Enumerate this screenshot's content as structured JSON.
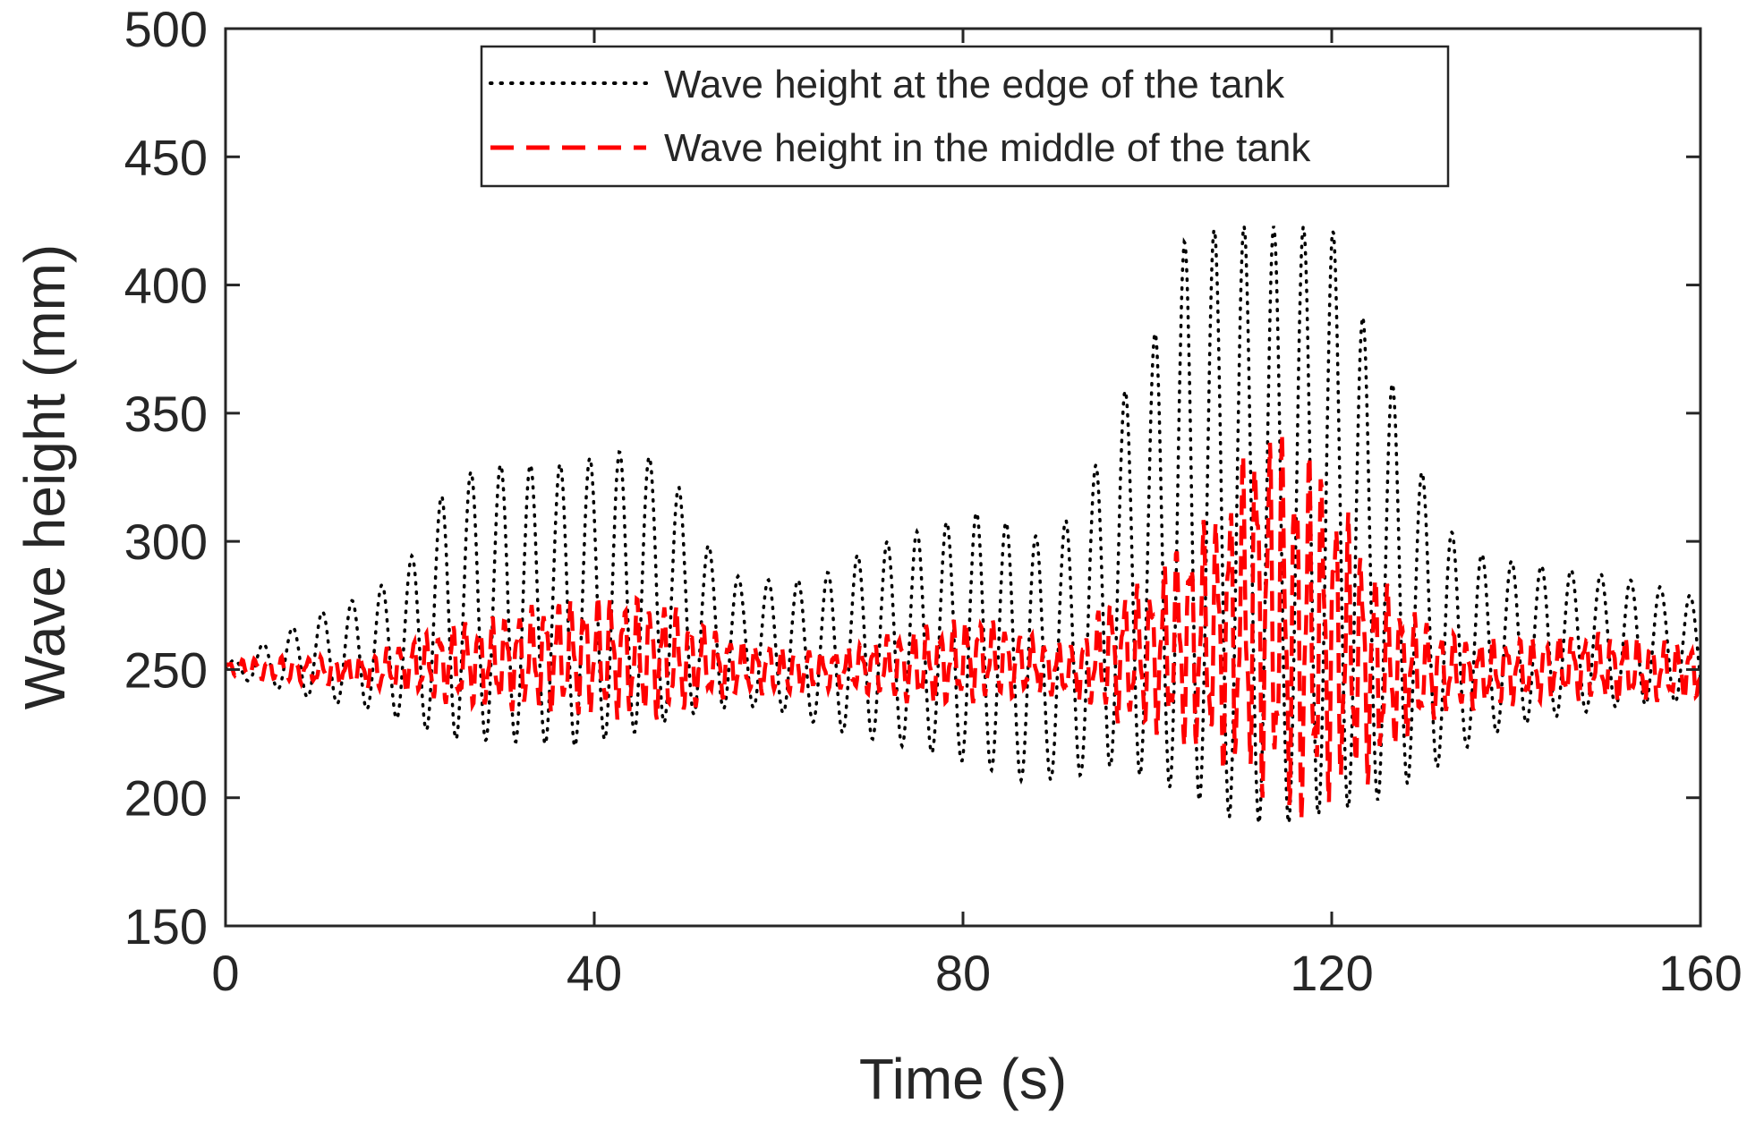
{
  "chart_data": {
    "type": "line",
    "title": "",
    "xlabel": "Time (s)",
    "ylabel": "Wave height (mm)",
    "xlim": [
      0,
      160
    ],
    "ylim": [
      150,
      500
    ],
    "xticks": [
      0,
      40,
      80,
      120,
      160
    ],
    "yticks": [
      150,
      200,
      250,
      300,
      350,
      400,
      450,
      500
    ],
    "grid": false,
    "legend_position": "top-center",
    "series": [
      {
        "name": "Wave height at the edge of the tank",
        "color": "#000000",
        "style": "dotted",
        "envelope_upper": [
          [
            0,
            252
          ],
          [
            4,
            260
          ],
          [
            10,
            272
          ],
          [
            16,
            280
          ],
          [
            20,
            293
          ],
          [
            24,
            322
          ],
          [
            28,
            330
          ],
          [
            36,
            330
          ],
          [
            44,
            336
          ],
          [
            48,
            330
          ],
          [
            52,
            300
          ],
          [
            56,
            285
          ],
          [
            64,
            285
          ],
          [
            70,
            298
          ],
          [
            76,
            305
          ],
          [
            82,
            312
          ],
          [
            88,
            302
          ],
          [
            92,
            310
          ],
          [
            94,
            325
          ],
          [
            96,
            350
          ],
          [
            100,
            372
          ],
          [
            102,
            395
          ],
          [
            104,
            417
          ],
          [
            108,
            423
          ],
          [
            116,
            423
          ],
          [
            120,
            423
          ],
          [
            122,
            398
          ],
          [
            126,
            368
          ],
          [
            130,
            325
          ],
          [
            134,
            297
          ],
          [
            140,
            292
          ],
          [
            150,
            287
          ],
          [
            156,
            282
          ],
          [
            160,
            278
          ]
        ],
        "envelope_lower": [
          [
            0,
            248
          ],
          [
            4,
            244
          ],
          [
            10,
            238
          ],
          [
            16,
            234
          ],
          [
            20,
            229
          ],
          [
            24,
            223
          ],
          [
            30,
            222
          ],
          [
            38,
            220
          ],
          [
            44,
            225
          ],
          [
            50,
            232
          ],
          [
            56,
            236
          ],
          [
            62,
            232
          ],
          [
            66,
            226
          ],
          [
            70,
            223
          ],
          [
            76,
            218
          ],
          [
            82,
            212
          ],
          [
            87,
            206
          ],
          [
            92,
            208
          ],
          [
            96,
            212
          ],
          [
            100,
            208
          ],
          [
            106,
            198
          ],
          [
            110,
            190
          ],
          [
            116,
            190
          ],
          [
            120,
            195
          ],
          [
            124,
            197
          ],
          [
            128,
            205
          ],
          [
            132,
            213
          ],
          [
            136,
            223
          ],
          [
            142,
            230
          ],
          [
            150,
            235
          ],
          [
            160,
            238
          ]
        ],
        "cycles_per_interval": 0.31
      },
      {
        "name": "Wave height in the middle of the tank",
        "color": "#ff0000",
        "style": "dashed",
        "envelope_upper": [
          [
            0,
            253
          ],
          [
            4,
            255
          ],
          [
            10,
            255
          ],
          [
            16,
            257
          ],
          [
            20,
            262
          ],
          [
            24,
            268
          ],
          [
            30,
            272
          ],
          [
            36,
            278
          ],
          [
            42,
            280
          ],
          [
            48,
            277
          ],
          [
            52,
            268
          ],
          [
            56,
            262
          ],
          [
            62,
            258
          ],
          [
            66,
            258
          ],
          [
            70,
            262
          ],
          [
            76,
            268
          ],
          [
            82,
            272
          ],
          [
            86,
            265
          ],
          [
            92,
            260
          ],
          [
            96,
            280
          ],
          [
            100,
            285
          ],
          [
            104,
            303
          ],
          [
            108,
            315
          ],
          [
            112,
            350
          ],
          [
            114,
            345
          ],
          [
            118,
            338
          ],
          [
            122,
            310
          ],
          [
            126,
            285
          ],
          [
            130,
            270
          ],
          [
            134,
            263
          ],
          [
            140,
            263
          ],
          [
            150,
            265
          ],
          [
            160,
            260
          ]
        ],
        "envelope_lower": [
          [
            0,
            248
          ],
          [
            4,
            246
          ],
          [
            10,
            244
          ],
          [
            16,
            242
          ],
          [
            20,
            240
          ],
          [
            24,
            236
          ],
          [
            30,
            234
          ],
          [
            36,
            232
          ],
          [
            42,
            230
          ],
          [
            48,
            230
          ],
          [
            52,
            236
          ],
          [
            56,
            240
          ],
          [
            62,
            240
          ],
          [
            66,
            242
          ],
          [
            70,
            240
          ],
          [
            76,
            235
          ],
          [
            82,
            237
          ],
          [
            88,
            240
          ],
          [
            92,
            238
          ],
          [
            96,
            230
          ],
          [
            100,
            225
          ],
          [
            106,
            215
          ],
          [
            112,
            200
          ],
          [
            117,
            186
          ],
          [
            120,
            198
          ],
          [
            124,
            205
          ],
          [
            128,
            222
          ],
          [
            132,
            232
          ],
          [
            138,
            235
          ],
          [
            146,
            238
          ],
          [
            152,
            236
          ],
          [
            160,
            238
          ]
        ],
        "cycles_per_interval": 0.7
      }
    ]
  }
}
